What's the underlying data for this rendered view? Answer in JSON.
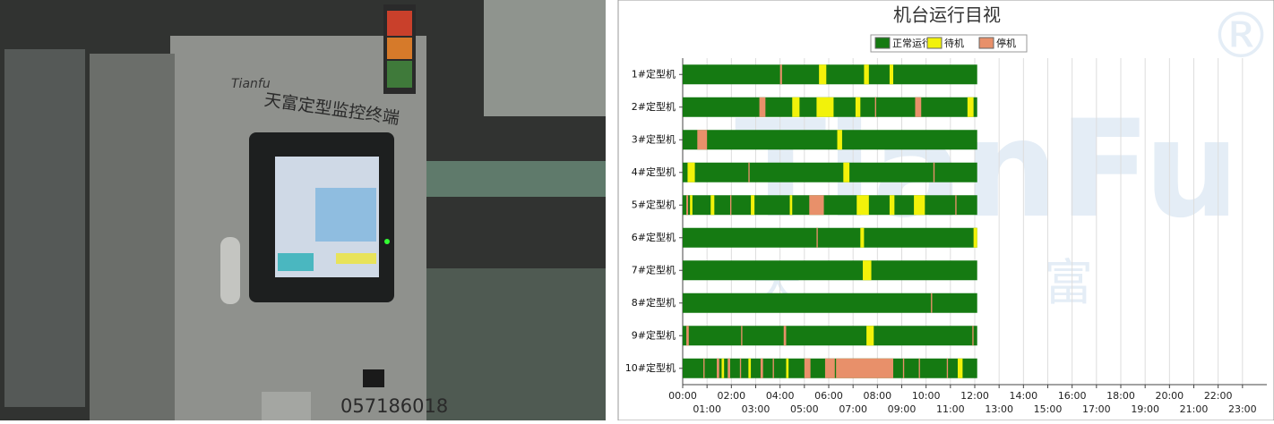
{
  "photo": {
    "brand": "Tianfu",
    "panel_label": "天富定型监控终端",
    "phone": "057186018"
  },
  "watermark": {
    "brand": "TianFu",
    "chars": [
      "天",
      "富"
    ],
    "mark": "®"
  },
  "chart_data": {
    "type": "timeline",
    "title": "机台运行目视",
    "categories": [
      "1#定型机",
      "2#定型机",
      "3#定型机",
      "4#定型机",
      "5#定型机",
      "6#定型机",
      "7#定型机",
      "8#定型机",
      "9#定型机",
      "10#定型机"
    ],
    "xlim": [
      0,
      24
    ],
    "xticks": [
      {
        "value": 0,
        "label": "00:00"
      },
      {
        "value": 1,
        "label": "01:00"
      },
      {
        "value": 2,
        "label": "02:00"
      },
      {
        "value": 3,
        "label": "03:00"
      },
      {
        "value": 4,
        "label": "04:00"
      },
      {
        "value": 5,
        "label": "05:00"
      },
      {
        "value": 6,
        "label": "06:00"
      },
      {
        "value": 7,
        "label": "07:00"
      },
      {
        "value": 8,
        "label": "08:00"
      },
      {
        "value": 9,
        "label": "09:00"
      },
      {
        "value": 10,
        "label": "10:00"
      },
      {
        "value": 11,
        "label": "11:00"
      },
      {
        "value": 12,
        "label": "12:00"
      },
      {
        "value": 13,
        "label": "13:00"
      },
      {
        "value": 14,
        "label": "14:00"
      },
      {
        "value": 15,
        "label": "15:00"
      },
      {
        "value": 16,
        "label": "16:00"
      },
      {
        "value": 17,
        "label": "17:00"
      },
      {
        "value": 18,
        "label": "18:00"
      },
      {
        "value": 19,
        "label": "19:00"
      },
      {
        "value": 20,
        "label": "20:00"
      },
      {
        "value": 21,
        "label": "21:00"
      },
      {
        "value": 22,
        "label": "22:00"
      },
      {
        "value": 23,
        "label": "23:00"
      }
    ],
    "grid": true,
    "series": [
      {
        "name": "正常运行",
        "color": "#157a12",
        "segments": [
          [
            [
              0,
              12.1
            ]
          ],
          [
            [
              0,
              12.1
            ]
          ],
          [
            [
              0,
              12.1
            ]
          ],
          [
            [
              0,
              12.1
            ]
          ],
          [
            [
              0,
              12.1
            ]
          ],
          [
            [
              0,
              12.1
            ]
          ],
          [
            [
              0,
              12.1
            ]
          ],
          [
            [
              0,
              12.1
            ]
          ],
          [
            [
              0,
              12.1
            ]
          ],
          [
            [
              0,
              12.1
            ]
          ]
        ]
      },
      {
        "name": "待机",
        "color": "#f2f20a",
        "segments": [
          [
            [
              5.6,
              5.9
            ],
            [
              7.45,
              7.65
            ],
            [
              8.5,
              8.65
            ]
          ],
          [
            [
              4.5,
              4.8
            ],
            [
              5.5,
              6.2
            ],
            [
              7.1,
              7.3
            ],
            [
              11.7,
              11.95
            ]
          ],
          [
            [
              6.35,
              6.55
            ]
          ],
          [
            [
              0.2,
              0.5
            ],
            [
              6.6,
              6.85
            ]
          ],
          [
            [
              0.3,
              0.4
            ],
            [
              1.15,
              1.3
            ],
            [
              2.8,
              2.95
            ],
            [
              4.4,
              4.5
            ],
            [
              7.15,
              7.65
            ],
            [
              8.5,
              8.7
            ],
            [
              9.5,
              9.95
            ]
          ],
          [
            [
              7.3,
              7.45
            ],
            [
              11.95,
              12.1
            ]
          ],
          [
            [
              7.4,
              7.75
            ]
          ],
          [],
          [
            [
              7.55,
              7.85
            ]
          ],
          [
            [
              1.6,
              1.7
            ],
            [
              2.7,
              2.8
            ],
            [
              4.25,
              4.35
            ],
            [
              11.3,
              11.5
            ]
          ]
        ]
      },
      {
        "name": "停机",
        "color": "#e8906a",
        "segments": [
          [
            [
              4.0,
              4.08
            ]
          ],
          [
            [
              3.15,
              3.4
            ],
            [
              7.9,
              7.95
            ],
            [
              9.55,
              9.8
            ]
          ],
          [
            [
              0.6,
              1.0
            ]
          ],
          [
            [
              2.7,
              2.75
            ],
            [
              10.3,
              10.35
            ]
          ],
          [
            [
              0.15,
              0.22
            ],
            [
              1.95,
              2.0
            ],
            [
              5.2,
              5.8
            ],
            [
              11.2,
              11.25
            ]
          ],
          [
            [
              5.5,
              5.55
            ]
          ],
          [],
          [
            [
              10.2,
              10.25
            ]
          ],
          [
            [
              0.15,
              0.25
            ],
            [
              2.4,
              2.45
            ],
            [
              4.15,
              4.25
            ],
            [
              11.9,
              11.95
            ]
          ],
          [
            [
              0.85,
              0.9
            ],
            [
              1.4,
              1.5
            ],
            [
              1.85,
              1.95
            ],
            [
              2.35,
              2.4
            ],
            [
              3.2,
              3.3
            ],
            [
              3.7,
              3.75
            ],
            [
              5.0,
              5.25
            ],
            [
              5.85,
              6.25
            ],
            [
              6.3,
              8.65
            ],
            [
              9.05,
              9.1
            ],
            [
              9.7,
              9.75
            ],
            [
              10.85,
              10.9
            ]
          ]
        ]
      }
    ]
  }
}
